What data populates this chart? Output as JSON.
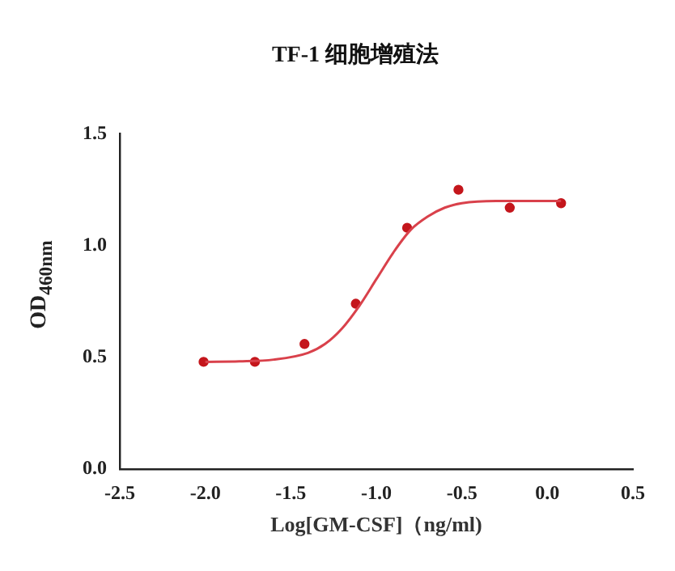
{
  "chart_data": {
    "type": "scatter",
    "title": "TF-1 细胞增殖法",
    "xlabel": "Log[GM-CSF]（ng/ml)",
    "ylabel": "OD$_{460nm}$",
    "xlim": [
      -2.5,
      0.5
    ],
    "ylim": [
      0,
      1.5
    ],
    "xticks": [
      -2.5,
      {
        "value": -2,
        "label": "-2.0"
      },
      -1.5,
      {
        "value": -1,
        "label": "-1.0"
      },
      -0.5,
      {
        "value": 0,
        "label": "0.0"
      },
      0.5
    ],
    "yticks": [
      {
        "value": 0,
        "label": "0.0"
      },
      0.5,
      {
        "value": 1,
        "label": "1.0"
      },
      1.5
    ],
    "grid": false,
    "legend": false,
    "series": [
      {
        "type": "line",
        "color": "#d9414b",
        "marker": "none",
        "line_style": "solid",
        "x": [
          -2.0,
          -1.8,
          -1.6,
          -1.4,
          -1.3,
          -1.2,
          -1.1,
          -1.0,
          -0.9,
          -0.8,
          -0.7,
          -0.6,
          -0.5,
          -0.3,
          0.08
        ],
        "values": [
          0.48,
          0.482,
          0.49,
          0.52,
          0.56,
          0.63,
          0.73,
          0.85,
          0.97,
          1.07,
          1.13,
          1.17,
          1.19,
          1.2,
          1.2
        ]
      },
      {
        "type": "scatter",
        "color": "#c4161c",
        "marker": "circle",
        "x": [
          -2.01,
          -1.71,
          -1.42,
          -1.12,
          -0.82,
          -0.52,
          -0.22,
          0.08
        ],
        "values": [
          0.48,
          0.48,
          0.56,
          0.74,
          1.08,
          1.25,
          1.17,
          1.19
        ]
      }
    ]
  }
}
